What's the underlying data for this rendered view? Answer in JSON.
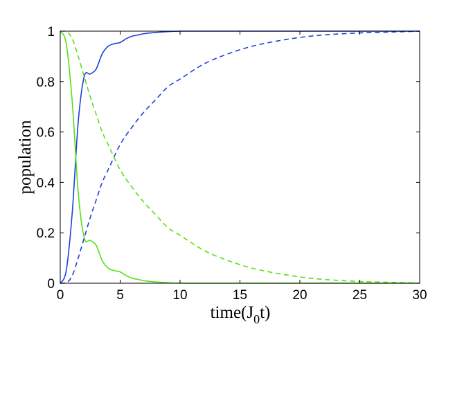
{
  "chart_data": {
    "type": "line",
    "xlabel_main": "time(J",
    "xlabel_sub": "0",
    "xlabel_tail": "t)",
    "ylabel": "population",
    "xlim": [
      0,
      30
    ],
    "ylim": [
      0,
      1
    ],
    "xticks": [
      "0",
      "5",
      "10",
      "15",
      "20",
      "25",
      "30"
    ],
    "yticks": [
      "0",
      "0.2",
      "0.4",
      "0.6",
      "0.8",
      "1"
    ],
    "grid": false,
    "legend": false,
    "colors": {
      "blue": "#1f3fdb",
      "green": "#55e010"
    },
    "series": [
      {
        "color": "blue",
        "style": "solid",
        "x": [
          0,
          0.5,
          1,
          1.5,
          2,
          2.5,
          3,
          3.5,
          4,
          4.5,
          5,
          5.5,
          6,
          6.5,
          7,
          8,
          9,
          10,
          12,
          15,
          20,
          25,
          30
        ],
        "y": [
          0,
          0.05,
          0.28,
          0.64,
          0.82,
          0.83,
          0.85,
          0.91,
          0.94,
          0.95,
          0.955,
          0.97,
          0.98,
          0.985,
          0.99,
          0.995,
          0.998,
          1.0,
          1.0,
          1.0,
          1.0,
          1.0,
          1.0
        ]
      },
      {
        "color": "green",
        "style": "solid",
        "x": [
          0,
          0.5,
          1,
          1.5,
          2,
          2.5,
          3,
          3.5,
          4,
          4.5,
          5,
          5.5,
          6,
          6.5,
          7,
          8,
          9,
          10,
          12,
          15,
          20,
          25,
          30
        ],
        "y": [
          1,
          0.95,
          0.72,
          0.36,
          0.18,
          0.17,
          0.15,
          0.09,
          0.06,
          0.05,
          0.045,
          0.03,
          0.02,
          0.015,
          0.01,
          0.005,
          0.002,
          0.0,
          0.0,
          0.0,
          0.0,
          0.0,
          0.0
        ]
      },
      {
        "color": "blue",
        "style": "dashed",
        "x": [
          0,
          0.5,
          1,
          1.5,
          2,
          2.5,
          3,
          3.5,
          4,
          5,
          6,
          7,
          8,
          9,
          10,
          12,
          14,
          16,
          18,
          20,
          22,
          25,
          28,
          30
        ],
        "y": [
          0,
          0.0,
          0.03,
          0.1,
          0.18,
          0.26,
          0.33,
          0.4,
          0.45,
          0.55,
          0.62,
          0.68,
          0.73,
          0.78,
          0.81,
          0.87,
          0.91,
          0.94,
          0.96,
          0.975,
          0.985,
          0.993,
          0.997,
          1.0
        ]
      },
      {
        "color": "green",
        "style": "dashed",
        "x": [
          0,
          0.5,
          1,
          1.5,
          2,
          2.5,
          3,
          3.5,
          4,
          5,
          6,
          7,
          8,
          9,
          10,
          12,
          14,
          16,
          18,
          20,
          22,
          25,
          28,
          30
        ],
        "y": [
          1,
          1.0,
          0.97,
          0.9,
          0.82,
          0.74,
          0.67,
          0.6,
          0.55,
          0.45,
          0.38,
          0.32,
          0.27,
          0.22,
          0.19,
          0.13,
          0.09,
          0.06,
          0.04,
          0.025,
          0.015,
          0.007,
          0.003,
          0.0
        ]
      }
    ]
  }
}
